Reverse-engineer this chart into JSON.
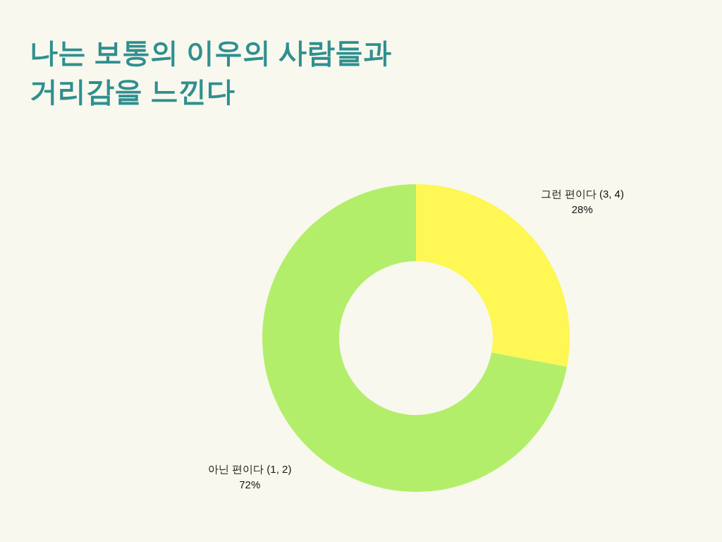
{
  "chart_data": {
    "type": "donut",
    "title": "나는 보통의 이우의 사람들과 거리감을 느낀다",
    "categories": [
      "그런 편이다 (3, 4)",
      "아닌 편이다 (1, 2)"
    ],
    "values": [
      28,
      72
    ],
    "colors": [
      "#fef754",
      "#b3ee6a"
    ],
    "value_labels": [
      "28%",
      "72%"
    ]
  }
}
